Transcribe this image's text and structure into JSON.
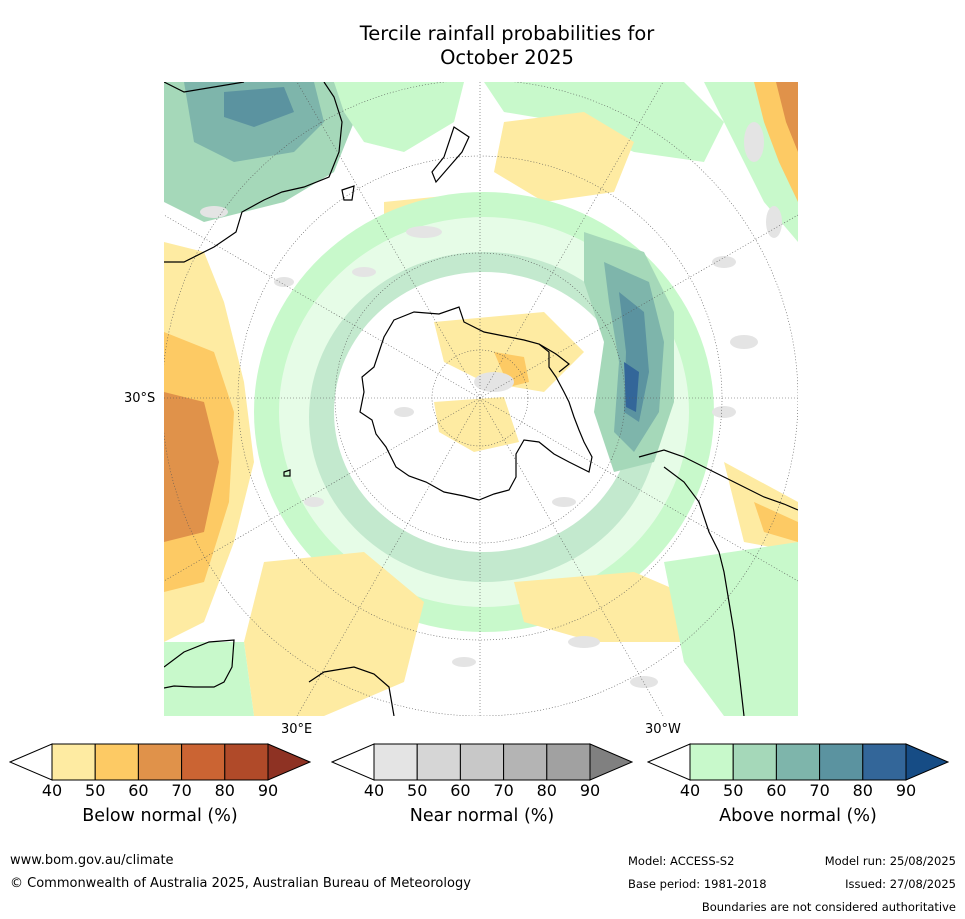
{
  "title": {
    "line1": "Tercile rainfall probabilities for",
    "line2": "October 2025"
  },
  "map": {
    "projection": "south-polar-stereographic",
    "labels": {
      "lat_left": "30°S",
      "lon_bottom_left": "30°E",
      "lon_bottom_right": "30°W"
    }
  },
  "colorbars": [
    {
      "id": "below",
      "label": "Below normal (%)",
      "ticks": [
        "40",
        "50",
        "60",
        "70",
        "80",
        "90"
      ],
      "colors": [
        "#ffffff",
        "#feeba2",
        "#fdca64",
        "#e0924a",
        "#cb6433",
        "#b04a29",
        "#8e3223"
      ]
    },
    {
      "id": "near",
      "label": "Near normal (%)",
      "ticks": [
        "40",
        "50",
        "60",
        "70",
        "80",
        "90"
      ],
      "colors": [
        "#ffffff",
        "#e4e4e4",
        "#d6d6d6",
        "#c8c8c8",
        "#b4b4b4",
        "#a1a1a1",
        "#808080"
      ]
    },
    {
      "id": "above",
      "label": "Above normal (%)",
      "ticks": [
        "40",
        "50",
        "60",
        "70",
        "80",
        "90"
      ],
      "colors": [
        "#ffffff",
        "#c8f9cb",
        "#a5d8b9",
        "#7eb5ab",
        "#5b93a0",
        "#336699",
        "#164c85"
      ]
    }
  ],
  "footer": {
    "website": "www.bom.gov.au/climate",
    "copyright": "© Commonwealth of Australia 2025, Australian Bureau of Meteorology",
    "model": "Model: ACCESS-S2",
    "base_period": "Base period: 1981-2018",
    "model_run": "Model run: 25/08/2025",
    "issued": "Issued: 27/08/2025",
    "disclaimer": "Boundaries are not considered authoritative"
  }
}
